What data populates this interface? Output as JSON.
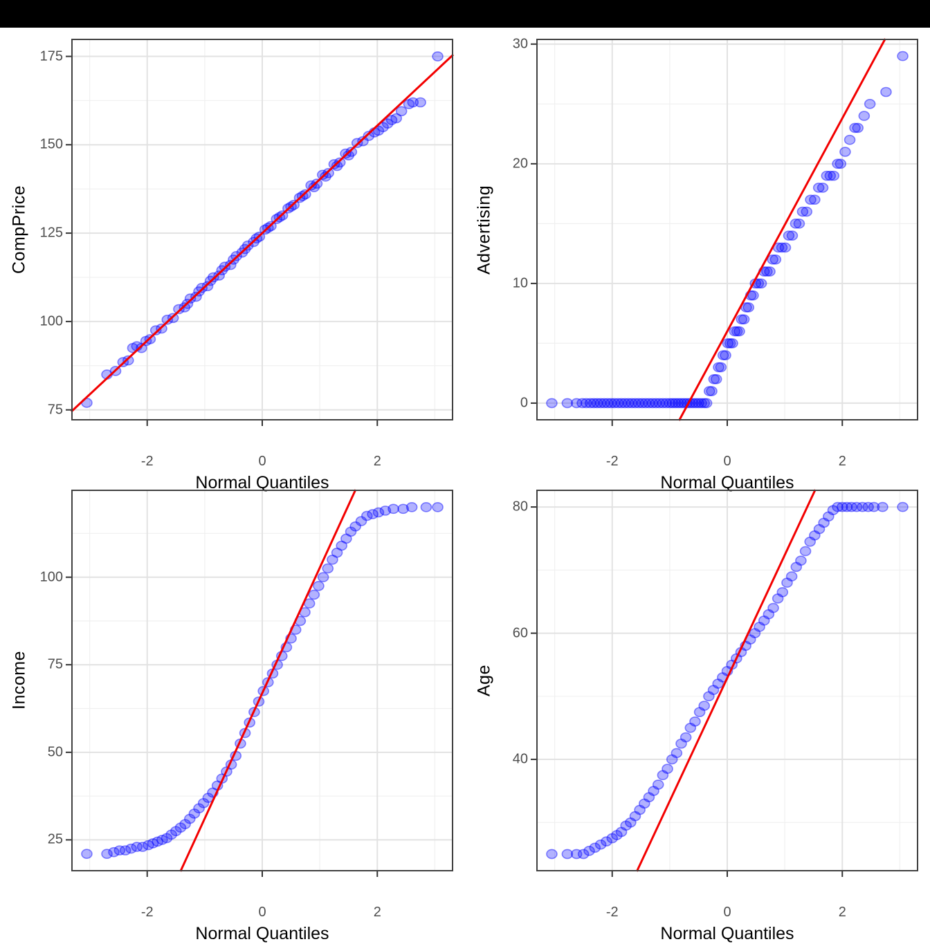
{
  "topbar": {
    "color": "#000000"
  },
  "figure": {
    "background": "#ffffff",
    "grid_major_color": "#e2e2e2",
    "grid_minor_color": "#f0f0f0",
    "panel_border_color": "#404040",
    "tick_mark_color": "#333333",
    "tick_label_color": "#4d4d4d",
    "axis_title_color": "#000000",
    "point_fill": "rgba(0,0,255,0.30)",
    "point_stroke": "rgba(0,0,255,0.45)",
    "point_rx": 7.5,
    "point_ry": 6.5,
    "line_color": "#f30000",
    "line_width": 3
  },
  "chart_data": [
    {
      "type": "scatter",
      "name": "qq-compprice",
      "ylabel": "CompPrice",
      "xlabel": "Normal Quantiles",
      "xlim": [
        -3.32,
        3.32
      ],
      "ylim": [
        72,
        180
      ],
      "xticks": [
        -2,
        0,
        2
      ],
      "xticks_minor": [
        -3,
        -1,
        1,
        3
      ],
      "yticks": [
        75,
        100,
        125,
        150,
        175
      ],
      "yticks_minor": [
        87.5,
        112.5,
        137.5,
        162.5
      ],
      "qq_line": {
        "x1": -3.32,
        "y1": 74.5,
        "x2": 3.32,
        "y2": 175.5
      },
      "points": [
        [
          -3.05,
          77
        ],
        [
          -2.7,
          85
        ],
        [
          -2.55,
          86
        ],
        [
          -2.42,
          88.5
        ],
        [
          -2.33,
          89
        ],
        [
          -2.25,
          92.5
        ],
        [
          -2.18,
          93
        ],
        [
          -2.1,
          92.5
        ],
        [
          -2.02,
          94.5
        ],
        [
          -1.95,
          95
        ],
        [
          -1.85,
          97.5
        ],
        [
          -1.75,
          98
        ],
        [
          -1.65,
          100.5
        ],
        [
          -1.55,
          101
        ],
        [
          -1.45,
          103.5
        ],
        [
          -1.35,
          104
        ],
        [
          -1.25,
          106.5
        ],
        [
          -1.15,
          107
        ],
        [
          -1.05,
          109.5
        ],
        [
          -0.95,
          110
        ],
        [
          -0.85,
          112.5
        ],
        [
          -0.75,
          113
        ],
        [
          -0.65,
          115.5
        ],
        [
          -0.55,
          116
        ],
        [
          -0.45,
          118.5
        ],
        [
          -0.35,
          119.5
        ],
        [
          -0.25,
          121.5
        ],
        [
          -0.15,
          122.5
        ],
        [
          -0.05,
          124
        ],
        [
          0.05,
          126
        ],
        [
          0.15,
          127
        ],
        [
          0.25,
          129
        ],
        [
          0.35,
          130
        ],
        [
          0.45,
          132
        ],
        [
          0.55,
          133
        ],
        [
          0.65,
          135
        ],
        [
          0.75,
          136
        ],
        [
          0.85,
          138.5
        ],
        [
          0.95,
          139
        ],
        [
          1.05,
          141.5
        ],
        [
          1.15,
          142
        ],
        [
          1.25,
          144.5
        ],
        [
          1.35,
          145
        ],
        [
          1.45,
          147.5
        ],
        [
          1.55,
          148
        ],
        [
          1.65,
          150.5
        ],
        [
          1.75,
          151
        ],
        [
          1.85,
          152.5
        ],
        [
          1.95,
          153.5
        ],
        [
          -1.3,
          105
        ],
        [
          -1.1,
          108.5
        ],
        [
          -0.9,
          111.5
        ],
        [
          -0.7,
          114.5
        ],
        [
          -0.5,
          117.5
        ],
        [
          -0.3,
          120.5
        ],
        [
          -0.1,
          123.5
        ],
        [
          0.1,
          126.5
        ],
        [
          0.3,
          129.5
        ],
        [
          0.5,
          132.5
        ],
        [
          0.7,
          135.5
        ],
        [
          0.9,
          138
        ],
        [
          1.1,
          141
        ],
        [
          1.3,
          144
        ],
        [
          1.5,
          147
        ],
        [
          2.02,
          154
        ],
        [
          2.1,
          155
        ],
        [
          2.18,
          156
        ],
        [
          2.25,
          157
        ],
        [
          2.33,
          157.5
        ],
        [
          2.42,
          159.5
        ],
        [
          2.55,
          161.5
        ],
        [
          2.62,
          162
        ],
        [
          2.75,
          162
        ],
        [
          3.05,
          175
        ]
      ]
    },
    {
      "type": "scatter",
      "name": "qq-advertising",
      "ylabel": "Advertising",
      "xlabel": "Normal Quantiles",
      "xlim": [
        -3.32,
        3.32
      ],
      "ylim": [
        -1.45,
        30.45
      ],
      "xticks": [
        -2,
        0,
        2
      ],
      "xticks_minor": [
        -3,
        -1,
        1,
        3
      ],
      "yticks": [
        0,
        10,
        20,
        30
      ],
      "yticks_minor": [
        5,
        15,
        25
      ],
      "qq_line": {
        "x1": -0.837,
        "y1": -1.45,
        "x2": 2.747,
        "y2": 30.45
      },
      "points": [
        [
          -3.05,
          0
        ],
        [
          -2.78,
          0
        ],
        [
          -2.62,
          0
        ],
        [
          -2.52,
          0
        ],
        [
          -2.45,
          0
        ],
        [
          -2.38,
          0
        ],
        [
          -2.32,
          0
        ],
        [
          -2.26,
          0
        ],
        [
          -2.2,
          0
        ],
        [
          -2.14,
          0
        ],
        [
          -2.08,
          0
        ],
        [
          -2.02,
          0
        ],
        [
          -1.96,
          0
        ],
        [
          -1.9,
          0
        ],
        [
          -1.84,
          0
        ],
        [
          -1.78,
          0
        ],
        [
          -1.72,
          0
        ],
        [
          -1.66,
          0
        ],
        [
          -1.6,
          0
        ],
        [
          -1.54,
          0
        ],
        [
          -1.48,
          0
        ],
        [
          -1.42,
          0
        ],
        [
          -1.36,
          0
        ],
        [
          -1.3,
          0
        ],
        [
          -1.24,
          0
        ],
        [
          -1.18,
          0
        ],
        [
          -1.12,
          0
        ],
        [
          -1.06,
          0
        ],
        [
          -1.0,
          0
        ],
        [
          -0.95,
          0
        ],
        [
          -0.9,
          0
        ],
        [
          -0.85,
          0
        ],
        [
          -0.8,
          0
        ],
        [
          -0.75,
          0
        ],
        [
          -0.7,
          0
        ],
        [
          -0.65,
          0
        ],
        [
          -0.6,
          0
        ],
        [
          -0.55,
          0
        ],
        [
          -0.5,
          0
        ],
        [
          -0.45,
          0
        ],
        [
          -0.4,
          0
        ],
        [
          -0.36,
          0
        ],
        [
          -0.31,
          1
        ],
        [
          -0.27,
          1
        ],
        [
          -0.23,
          2
        ],
        [
          -0.19,
          2
        ],
        [
          -0.15,
          3
        ],
        [
          -0.11,
          3
        ],
        [
          -0.07,
          4
        ],
        [
          -0.03,
          4
        ],
        [
          0.01,
          5
        ],
        [
          0.05,
          5
        ],
        [
          0.09,
          5
        ],
        [
          0.13,
          6
        ],
        [
          0.17,
          6
        ],
        [
          0.21,
          6
        ],
        [
          0.25,
          7
        ],
        [
          0.29,
          7
        ],
        [
          0.33,
          8
        ],
        [
          0.37,
          8
        ],
        [
          0.41,
          9
        ],
        [
          0.45,
          9
        ],
        [
          0.49,
          10
        ],
        [
          0.54,
          10
        ],
        [
          0.59,
          10
        ],
        [
          0.64,
          11
        ],
        [
          0.69,
          11
        ],
        [
          0.74,
          11
        ],
        [
          0.79,
          12
        ],
        [
          0.84,
          12
        ],
        [
          0.89,
          13
        ],
        [
          0.95,
          13
        ],
        [
          1.01,
          13
        ],
        [
          1.07,
          14
        ],
        [
          1.13,
          14
        ],
        [
          1.19,
          15
        ],
        [
          1.25,
          15
        ],
        [
          1.31,
          16
        ],
        [
          1.38,
          16
        ],
        [
          1.45,
          17
        ],
        [
          1.52,
          17
        ],
        [
          1.59,
          18
        ],
        [
          1.66,
          18
        ],
        [
          1.73,
          19
        ],
        [
          1.79,
          19
        ],
        [
          1.85,
          19
        ],
        [
          1.92,
          20
        ],
        [
          1.97,
          20
        ],
        [
          2.05,
          21
        ],
        [
          2.13,
          22
        ],
        [
          2.22,
          23
        ],
        [
          2.27,
          23
        ],
        [
          2.38,
          24
        ],
        [
          2.48,
          25
        ],
        [
          2.76,
          26
        ],
        [
          3.05,
          29
        ]
      ]
    },
    {
      "type": "scatter",
      "name": "qq-income",
      "ylabel": "Income",
      "xlabel": "Normal Quantiles",
      "xlim": [
        -3.32,
        3.32
      ],
      "ylim": [
        16,
        125
      ],
      "xticks": [
        -2,
        0,
        2
      ],
      "xticks_minor": [
        -3,
        -1,
        1,
        3
      ],
      "yticks": [
        25,
        50,
        75,
        100
      ],
      "yticks_minor": [
        37.5,
        62.5,
        87.5,
        112.5
      ],
      "qq_line": {
        "x1": -1.422,
        "y1": 16,
        "x2": 1.623,
        "y2": 125
      },
      "points": [
        [
          -3.05,
          21
        ],
        [
          -2.7,
          21
        ],
        [
          -2.58,
          21.5
        ],
        [
          -2.48,
          22
        ],
        [
          -2.38,
          22
        ],
        [
          -2.28,
          22.5
        ],
        [
          -2.18,
          23
        ],
        [
          -2.08,
          23
        ],
        [
          -1.98,
          23.5
        ],
        [
          -1.9,
          24
        ],
        [
          -1.82,
          24.5
        ],
        [
          -1.74,
          25
        ],
        [
          -1.66,
          25.5
        ],
        [
          -1.58,
          26.5
        ],
        [
          -1.5,
          27.5
        ],
        [
          -1.42,
          28.5
        ],
        [
          -1.34,
          29.5
        ],
        [
          -1.26,
          31
        ],
        [
          -1.18,
          32.5
        ],
        [
          -1.1,
          34
        ],
        [
          -1.02,
          35.5
        ],
        [
          -0.94,
          37
        ],
        [
          -0.86,
          38.5
        ],
        [
          -0.78,
          40.5
        ],
        [
          -0.7,
          42.5
        ],
        [
          -0.62,
          44.5
        ],
        [
          -0.54,
          46.5
        ],
        [
          -0.46,
          49
        ],
        [
          -0.38,
          52.5
        ],
        [
          -0.3,
          55.5
        ],
        [
          -0.22,
          58.5
        ],
        [
          -0.14,
          61.5
        ],
        [
          -0.06,
          64.5
        ],
        [
          0.02,
          67.5
        ],
        [
          0.1,
          70
        ],
        [
          0.18,
          72.5
        ],
        [
          0.26,
          75
        ],
        [
          0.34,
          77.5
        ],
        [
          0.42,
          80
        ],
        [
          0.5,
          82.5
        ],
        [
          0.58,
          85
        ],
        [
          0.66,
          87.5
        ],
        [
          0.74,
          90
        ],
        [
          0.82,
          92.5
        ],
        [
          0.9,
          95
        ],
        [
          0.98,
          97.5
        ],
        [
          1.06,
          100
        ],
        [
          1.14,
          102.5
        ],
        [
          1.22,
          105
        ],
        [
          1.3,
          107
        ],
        [
          1.38,
          109
        ],
        [
          1.46,
          111
        ],
        [
          1.54,
          113
        ],
        [
          1.62,
          114.5
        ],
        [
          1.72,
          116
        ],
        [
          1.82,
          117.5
        ],
        [
          1.92,
          118
        ],
        [
          2.02,
          118.5
        ],
        [
          2.14,
          119
        ],
        [
          2.28,
          119.5
        ],
        [
          2.45,
          119.5
        ],
        [
          2.6,
          120
        ],
        [
          2.85,
          120
        ],
        [
          3.05,
          120
        ]
      ]
    },
    {
      "type": "scatter",
      "name": "qq-age",
      "ylabel": "Age",
      "xlabel": "Normal Quantiles",
      "xlim": [
        -3.32,
        3.32
      ],
      "ylim": [
        22.25,
        82.75
      ],
      "xticks": [
        -2,
        0,
        2
      ],
      "xticks_minor": [
        -3,
        -1,
        1,
        3
      ],
      "yticks": [
        40,
        60,
        80
      ],
      "yticks_minor": [
        30,
        50,
        70
      ],
      "qq_line": {
        "x1": -1.572,
        "y1": 22.25,
        "x2": 1.531,
        "y2": 82.75
      },
      "points": [
        [
          -3.05,
          25
        ],
        [
          -2.78,
          25
        ],
        [
          -2.62,
          25
        ],
        [
          -2.5,
          25
        ],
        [
          -2.4,
          25.5
        ],
        [
          -2.3,
          26
        ],
        [
          -2.2,
          26.5
        ],
        [
          -2.1,
          27
        ],
        [
          -2.0,
          27.5
        ],
        [
          -1.92,
          28
        ],
        [
          -1.84,
          28.5
        ],
        [
          -1.76,
          29.5
        ],
        [
          -1.68,
          30
        ],
        [
          -1.6,
          31
        ],
        [
          -1.52,
          32
        ],
        [
          -1.44,
          33
        ],
        [
          -1.36,
          34
        ],
        [
          -1.28,
          35
        ],
        [
          -1.2,
          36
        ],
        [
          -1.12,
          37.5
        ],
        [
          -1.04,
          38.5
        ],
        [
          -0.96,
          40
        ],
        [
          -0.88,
          41
        ],
        [
          -0.8,
          42.5
        ],
        [
          -0.72,
          43.5
        ],
        [
          -0.64,
          45
        ],
        [
          -0.56,
          46
        ],
        [
          -0.48,
          47.5
        ],
        [
          -0.4,
          48.5
        ],
        [
          -0.32,
          50
        ],
        [
          -0.24,
          51
        ],
        [
          -0.16,
          52
        ],
        [
          -0.08,
          53
        ],
        [
          0.0,
          54
        ],
        [
          0.08,
          55
        ],
        [
          0.16,
          56
        ],
        [
          0.24,
          57
        ],
        [
          0.32,
          58
        ],
        [
          0.4,
          59
        ],
        [
          0.48,
          60
        ],
        [
          0.56,
          61
        ],
        [
          0.64,
          62
        ],
        [
          0.72,
          63
        ],
        [
          0.8,
          64
        ],
        [
          0.88,
          65.5
        ],
        [
          0.96,
          66.5
        ],
        [
          1.04,
          68
        ],
        [
          1.12,
          69
        ],
        [
          1.2,
          70.5
        ],
        [
          1.28,
          71.5
        ],
        [
          1.36,
          73
        ],
        [
          1.44,
          74.5
        ],
        [
          1.52,
          75.5
        ],
        [
          1.6,
          76.5
        ],
        [
          1.68,
          77.5
        ],
        [
          1.76,
          78.5
        ],
        [
          1.84,
          79.5
        ],
        [
          1.92,
          80
        ],
        [
          2.0,
          80
        ],
        [
          2.08,
          80
        ],
        [
          2.16,
          80
        ],
        [
          2.25,
          80
        ],
        [
          2.35,
          80
        ],
        [
          2.45,
          80
        ],
        [
          2.55,
          80
        ],
        [
          2.7,
          80
        ],
        [
          3.05,
          80
        ]
      ]
    }
  ]
}
